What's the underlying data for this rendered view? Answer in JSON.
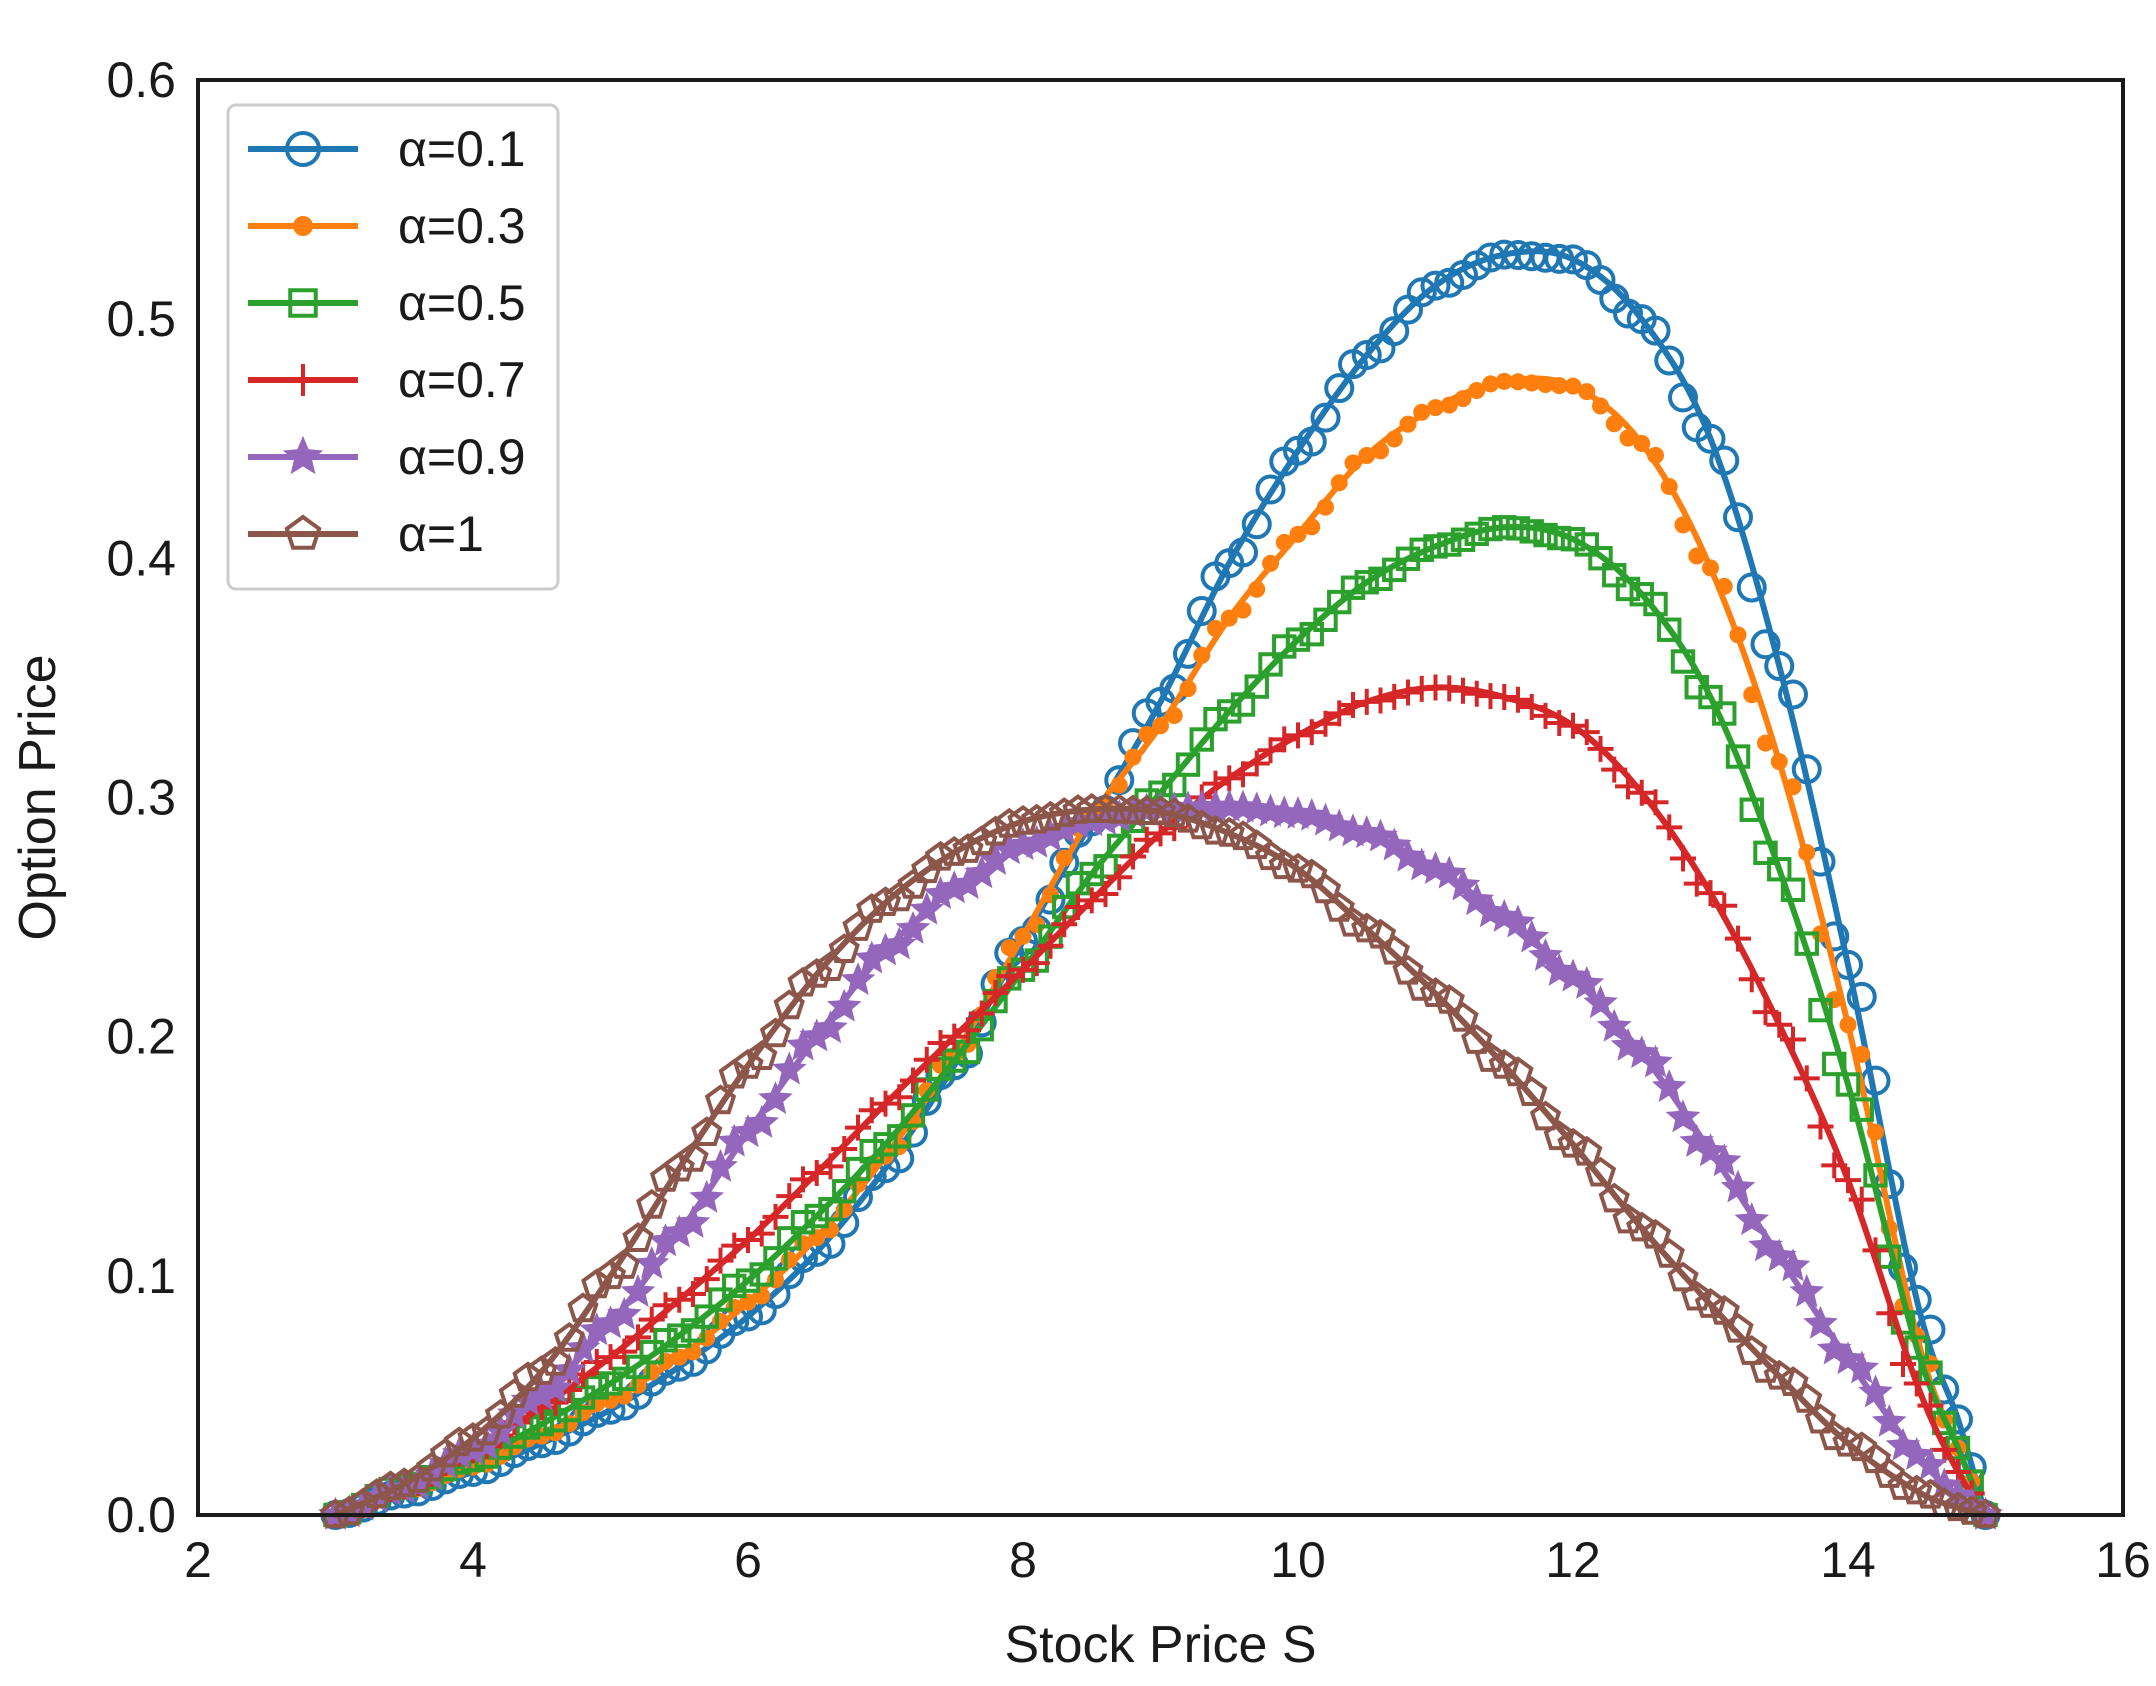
{
  "chart_data": {
    "type": "line",
    "title": "",
    "xlabel": "Stock Price S",
    "ylabel": "Option Price",
    "xlim": [
      2,
      16
    ],
    "ylim": [
      0,
      0.6
    ],
    "xticks": [
      2,
      4,
      6,
      8,
      10,
      12,
      14,
      16
    ],
    "yticks": [
      0.0,
      0.1,
      0.2,
      0.3,
      0.4,
      0.5,
      0.6
    ],
    "xtick_labels": [
      "2",
      "4",
      "6",
      "8",
      "10",
      "12",
      "14",
      "16"
    ],
    "ytick_labels": [
      "0.0",
      "0.1",
      "0.2",
      "0.3",
      "0.4",
      "0.5",
      "0.6"
    ],
    "grid": false,
    "legend_position": "top-left",
    "series": [
      {
        "name": "α=0.1",
        "color": "#1f77b4",
        "marker": "circle",
        "x": [
          3.0,
          3.5,
          4.0,
          4.5,
          5.0,
          5.5,
          6.0,
          6.5,
          7.0,
          7.5,
          8.0,
          8.5,
          9.0,
          9.5,
          10.0,
          10.5,
          11.0,
          11.5,
          12.0,
          12.5,
          13.0,
          13.5,
          14.0,
          14.5,
          14.8,
          15.0
        ],
        "y": [
          0.0,
          0.009,
          0.018,
          0.03,
          0.044,
          0.062,
          0.083,
          0.11,
          0.145,
          0.188,
          0.24,
          0.29,
          0.34,
          0.398,
          0.445,
          0.485,
          0.514,
          0.527,
          0.525,
          0.5,
          0.45,
          0.355,
          0.23,
          0.09,
          0.04,
          0.0
        ]
      },
      {
        "name": "α=0.3",
        "color": "#ff7f0e",
        "marker": "dot",
        "x": [
          3.0,
          3.5,
          4.0,
          4.5,
          5.0,
          5.5,
          6.0,
          6.5,
          7.0,
          7.5,
          8.0,
          8.5,
          9.0,
          9.5,
          10.0,
          10.5,
          11.0,
          11.5,
          12.0,
          12.5,
          13.0,
          13.5,
          14.0,
          14.5,
          14.8,
          15.0
        ],
        "y": [
          0.0,
          0.01,
          0.02,
          0.033,
          0.048,
          0.066,
          0.089,
          0.116,
          0.15,
          0.192,
          0.242,
          0.292,
          0.33,
          0.375,
          0.41,
          0.443,
          0.463,
          0.474,
          0.472,
          0.448,
          0.396,
          0.315,
          0.205,
          0.075,
          0.028,
          0.0
        ]
      },
      {
        "name": "α=0.5",
        "color": "#2ca02c",
        "marker": "square",
        "x": [
          3.0,
          3.5,
          4.0,
          4.5,
          5.0,
          5.5,
          6.0,
          6.5,
          7.0,
          7.5,
          8.0,
          8.5,
          9.0,
          9.5,
          10.0,
          10.5,
          11.0,
          11.5,
          12.0,
          12.5,
          13.0,
          13.5,
          14.0,
          14.5,
          14.8,
          15.0
        ],
        "y": [
          0.0,
          0.012,
          0.023,
          0.038,
          0.055,
          0.075,
          0.098,
          0.125,
          0.155,
          0.19,
          0.228,
          0.268,
          0.302,
          0.336,
          0.366,
          0.39,
          0.405,
          0.413,
          0.408,
          0.385,
          0.342,
          0.27,
          0.18,
          0.07,
          0.028,
          0.0
        ]
      },
      {
        "name": "α=0.7",
        "color": "#d62728",
        "marker": "plus",
        "x": [
          3.0,
          3.5,
          4.0,
          4.5,
          5.0,
          5.5,
          6.0,
          6.5,
          7.0,
          7.5,
          8.0,
          8.5,
          9.0,
          9.5,
          10.0,
          10.5,
          11.0,
          11.5,
          12.0,
          12.5,
          13.0,
          13.5,
          14.0,
          14.5,
          14.8,
          15.0
        ],
        "y": [
          0.0,
          0.012,
          0.027,
          0.045,
          0.066,
          0.09,
          0.115,
          0.143,
          0.172,
          0.2,
          0.228,
          0.257,
          0.285,
          0.308,
          0.326,
          0.34,
          0.346,
          0.342,
          0.33,
          0.302,
          0.26,
          0.205,
          0.14,
          0.055,
          0.018,
          0.0
        ]
      },
      {
        "name": "α=0.9",
        "color": "#9467bd",
        "marker": "star",
        "x": [
          3.0,
          3.5,
          4.0,
          4.5,
          5.0,
          5.5,
          6.0,
          6.5,
          7.0,
          7.5,
          8.0,
          8.5,
          9.0,
          9.5,
          10.0,
          10.5,
          11.0,
          11.5,
          12.0,
          12.5,
          13.0,
          13.5,
          14.0,
          14.5,
          14.8,
          15.0
        ],
        "y": [
          0.0,
          0.011,
          0.027,
          0.05,
          0.08,
          0.118,
          0.16,
          0.2,
          0.236,
          0.262,
          0.28,
          0.29,
          0.295,
          0.296,
          0.293,
          0.285,
          0.27,
          0.25,
          0.225,
          0.193,
          0.152,
          0.108,
          0.065,
          0.025,
          0.008,
          0.0
        ]
      },
      {
        "name": "α=1",
        "color": "#8c564b",
        "marker": "pentagon",
        "x": [
          3.0,
          3.5,
          4.0,
          4.5,
          5.0,
          5.5,
          6.0,
          6.5,
          7.0,
          7.5,
          8.0,
          8.5,
          9.0,
          9.5,
          10.0,
          10.5,
          11.0,
          11.5,
          12.0,
          12.5,
          13.0,
          13.5,
          14.0,
          14.5,
          14.8,
          15.0
        ],
        "y": [
          0.0,
          0.013,
          0.032,
          0.06,
          0.1,
          0.145,
          0.188,
          0.226,
          0.256,
          0.277,
          0.29,
          0.295,
          0.294,
          0.285,
          0.27,
          0.245,
          0.218,
          0.188,
          0.155,
          0.12,
          0.088,
          0.058,
          0.03,
          0.01,
          0.003,
          0.0
        ]
      }
    ]
  }
}
